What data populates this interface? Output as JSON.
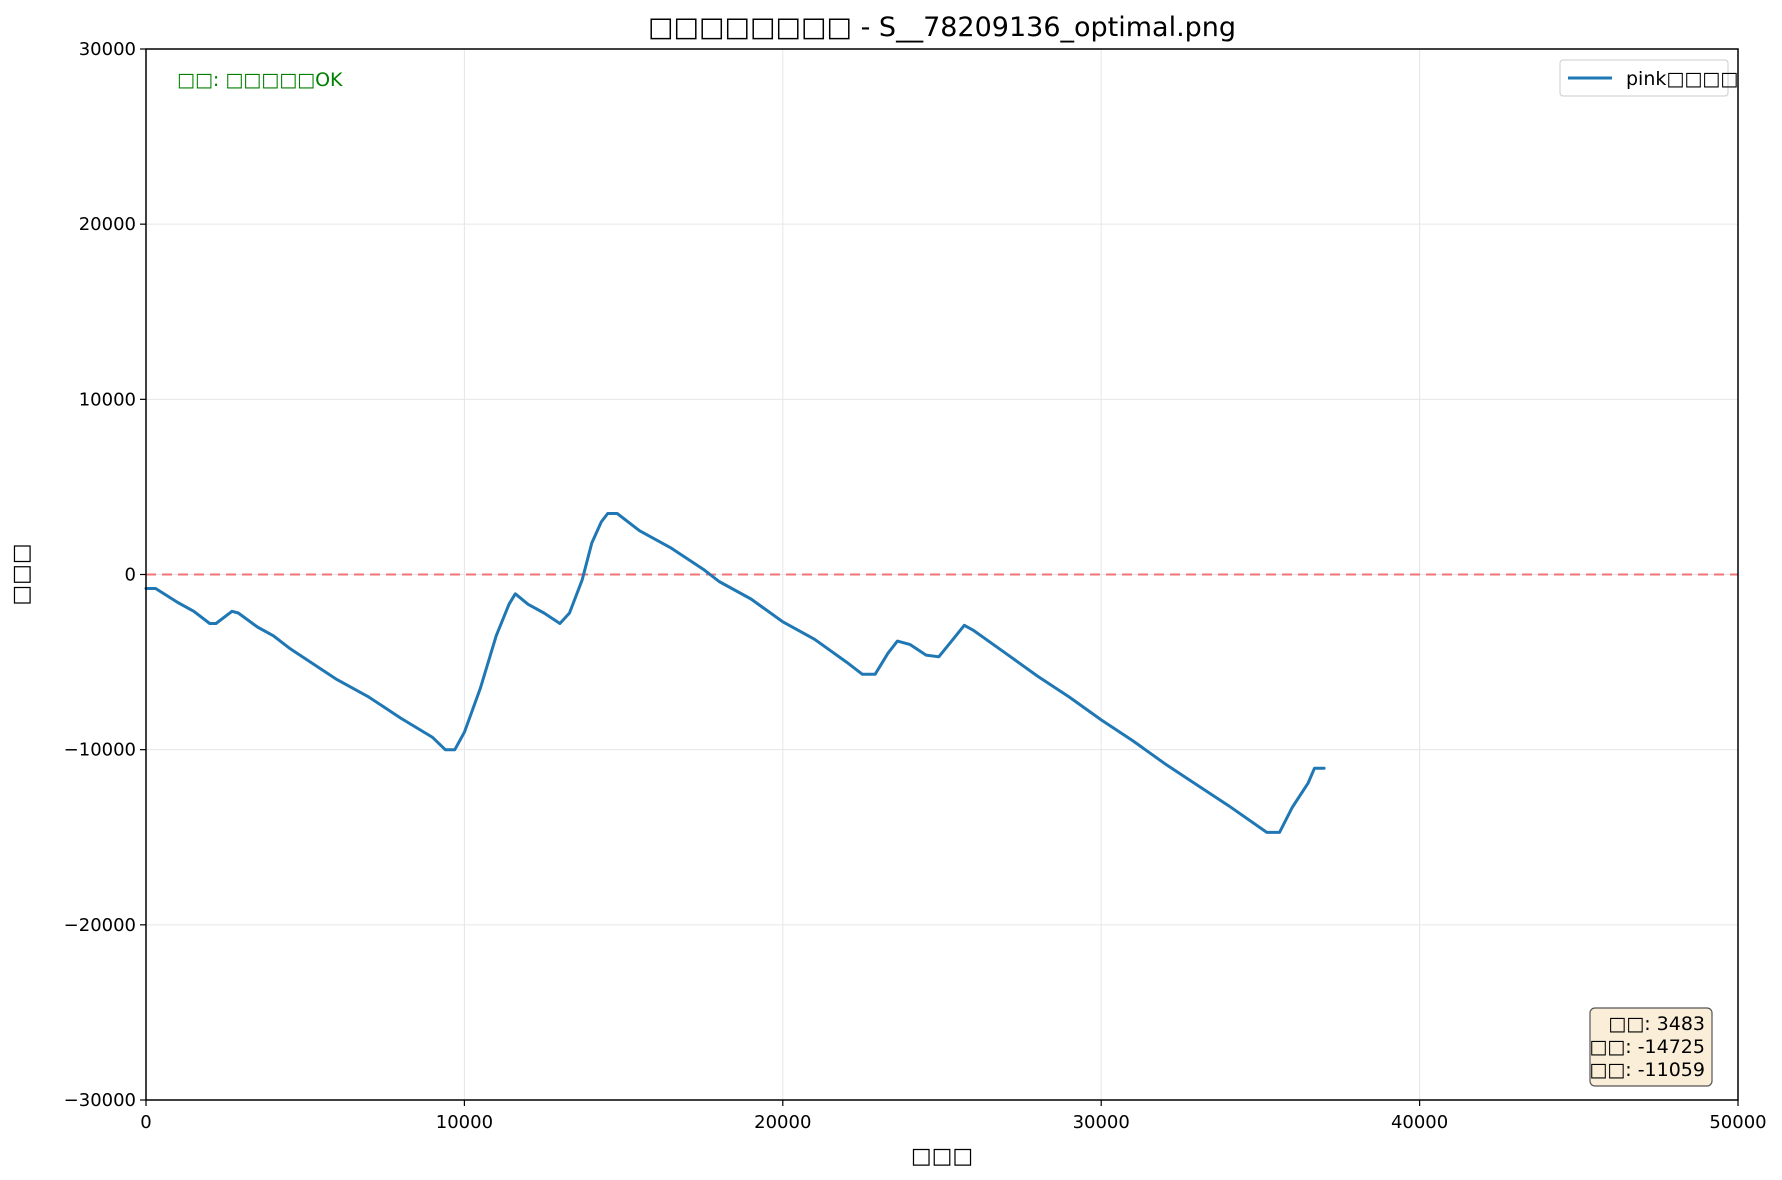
{
  "chart_data": {
    "type": "line",
    "title": "□□□□□□□□ - S__78209136_optimal.png",
    "xlabel": "□□□",
    "ylabel": "□□□",
    "xlim": [
      0,
      50000
    ],
    "ylim": [
      -30000,
      30000
    ],
    "xticks": [
      0,
      10000,
      20000,
      30000,
      40000,
      50000
    ],
    "yticks": [
      30000,
      20000,
      10000,
      0,
      -10000,
      -20000,
      -30000
    ],
    "xtick_labels": [
      "0",
      "10000",
      "20000",
      "30000",
      "40000",
      "50000"
    ],
    "ytick_labels": [
      "30000",
      "20000",
      "10000",
      "0",
      "−10000",
      "−20000",
      "−30000"
    ],
    "grid": true,
    "status_text": "□□: □□□□□OK",
    "reference_line": {
      "y": 0,
      "style": "dashed",
      "color": "#f27474"
    },
    "legend": {
      "placement": "top-right",
      "entries": [
        "pink□□□□"
      ]
    },
    "stats_box": {
      "placement": "bottom-right",
      "lines": [
        "□□: 3483",
        "□□: -14725",
        "□□: -11059"
      ]
    },
    "series": [
      {
        "name": "pink□□□□",
        "color": "#1f77b4",
        "points": [
          [
            0,
            -800
          ],
          [
            300,
            -800
          ],
          [
            1000,
            -1600
          ],
          [
            1500,
            -2100
          ],
          [
            2000,
            -2800
          ],
          [
            2200,
            -2800
          ],
          [
            2700,
            -2100
          ],
          [
            2900,
            -2200
          ],
          [
            3500,
            -3000
          ],
          [
            4000,
            -3500
          ],
          [
            4500,
            -4200
          ],
          [
            5000,
            -4800
          ],
          [
            6000,
            -6000
          ],
          [
            7000,
            -7000
          ],
          [
            8000,
            -8200
          ],
          [
            9000,
            -9300
          ],
          [
            9400,
            -10000
          ],
          [
            9700,
            -10000
          ],
          [
            10000,
            -9000
          ],
          [
            10500,
            -6500
          ],
          [
            11000,
            -3500
          ],
          [
            11400,
            -1700
          ],
          [
            11600,
            -1100
          ],
          [
            12000,
            -1700
          ],
          [
            12500,
            -2200
          ],
          [
            13000,
            -2800
          ],
          [
            13300,
            -2200
          ],
          [
            13700,
            -300
          ],
          [
            14000,
            1800
          ],
          [
            14300,
            3000
          ],
          [
            14500,
            3483
          ],
          [
            14800,
            3483
          ],
          [
            15500,
            2500
          ],
          [
            16500,
            1500
          ],
          [
            17500,
            300
          ],
          [
            18000,
            -400
          ],
          [
            19000,
            -1400
          ],
          [
            20000,
            -2700
          ],
          [
            21000,
            -3700
          ],
          [
            22000,
            -5000
          ],
          [
            22500,
            -5700
          ],
          [
            22900,
            -5700
          ],
          [
            23300,
            -4500
          ],
          [
            23600,
            -3800
          ],
          [
            24000,
            -4000
          ],
          [
            24500,
            -4600
          ],
          [
            24900,
            -4700
          ],
          [
            25300,
            -3800
          ],
          [
            25700,
            -2900
          ],
          [
            26000,
            -3200
          ],
          [
            27000,
            -4500
          ],
          [
            28000,
            -5800
          ],
          [
            29000,
            -7000
          ],
          [
            30000,
            -8300
          ],
          [
            31000,
            -9500
          ],
          [
            32000,
            -10800
          ],
          [
            33000,
            -12000
          ],
          [
            34000,
            -13200
          ],
          [
            35200,
            -14725
          ],
          [
            35600,
            -14725
          ],
          [
            36000,
            -13300
          ],
          [
            36500,
            -11900
          ],
          [
            36700,
            -11059
          ],
          [
            37000,
            -11059
          ]
        ]
      }
    ]
  }
}
